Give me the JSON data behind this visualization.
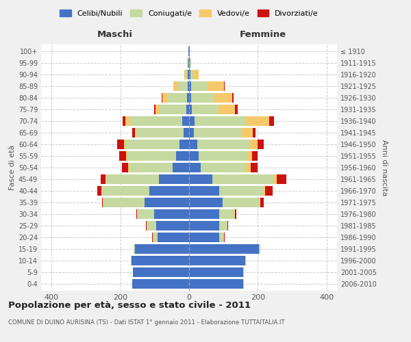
{
  "age_groups": [
    "0-4",
    "5-9",
    "10-14",
    "15-19",
    "20-24",
    "25-29",
    "30-34",
    "35-39",
    "40-44",
    "45-49",
    "50-54",
    "55-59",
    "60-64",
    "65-69",
    "70-74",
    "75-79",
    "80-84",
    "85-89",
    "90-94",
    "95-99",
    "100+"
  ],
  "birth_years": [
    "2006-2010",
    "2001-2005",
    "1996-2000",
    "1991-1995",
    "1986-1990",
    "1981-1985",
    "1976-1980",
    "1971-1975",
    "1966-1970",
    "1961-1965",
    "1956-1960",
    "1951-1955",
    "1946-1950",
    "1941-1945",
    "1936-1940",
    "1931-1935",
    "1926-1930",
    "1921-1925",
    "1916-1920",
    "1911-1915",
    "≤ 1910"
  ],
  "colors": {
    "celibi": "#4472C4",
    "coniugati": "#c5d9a0",
    "vedovi": "#f5c96a",
    "divorziati": "#cc1111"
  },
  "legend_labels": [
    "Celibi/Nubili",
    "Coniugati/e",
    "Vedovi/e",
    "Divorziati/e"
  ],
  "male_celibi": [
    165,
    163,
    168,
    158,
    92,
    95,
    102,
    130,
    115,
    88,
    48,
    38,
    28,
    15,
    20,
    8,
    6,
    4,
    3,
    2,
    1
  ],
  "male_coniugati": [
    1,
    1,
    2,
    4,
    14,
    28,
    48,
    118,
    138,
    152,
    128,
    142,
    158,
    138,
    152,
    78,
    58,
    28,
    5,
    3,
    1
  ],
  "male_vedovi": [
    0,
    0,
    0,
    0,
    0,
    1,
    1,
    2,
    2,
    2,
    2,
    3,
    4,
    5,
    14,
    12,
    14,
    14,
    5,
    1,
    0
  ],
  "male_divorziati": [
    0,
    0,
    0,
    0,
    1,
    1,
    2,
    2,
    11,
    14,
    17,
    21,
    19,
    8,
    8,
    4,
    1,
    0,
    0,
    0,
    0
  ],
  "female_nubili": [
    158,
    158,
    163,
    203,
    88,
    88,
    88,
    98,
    88,
    68,
    34,
    28,
    24,
    14,
    16,
    7,
    5,
    5,
    3,
    2,
    1
  ],
  "female_coniugate": [
    1,
    1,
    2,
    4,
    13,
    23,
    43,
    108,
    128,
    178,
    132,
    142,
    152,
    138,
    148,
    78,
    68,
    48,
    10,
    3,
    1
  ],
  "female_vedove": [
    0,
    0,
    0,
    0,
    1,
    1,
    2,
    2,
    4,
    8,
    13,
    13,
    23,
    33,
    68,
    48,
    53,
    48,
    14,
    1,
    0
  ],
  "female_divorziate": [
    0,
    0,
    0,
    0,
    1,
    2,
    4,
    9,
    23,
    28,
    21,
    17,
    17,
    9,
    14,
    8,
    4,
    2,
    0,
    0,
    0
  ],
  "xlabel_left": "Maschi",
  "xlabel_right": "Femmine",
  "ylabel_left": "Fasce di età",
  "ylabel_right": "Anni di nascita",
  "title": "Popolazione per età, sesso e stato civile - 2011",
  "subtitle": "COMUNE DI DUINO AURISINA (TS) - Dati ISTAT 1° gennaio 2011 - Elaborazione TUTTAITALIA.IT",
  "xlim": 430,
  "bg_color": "#f0f0f0",
  "plot_bg": "#ffffff"
}
